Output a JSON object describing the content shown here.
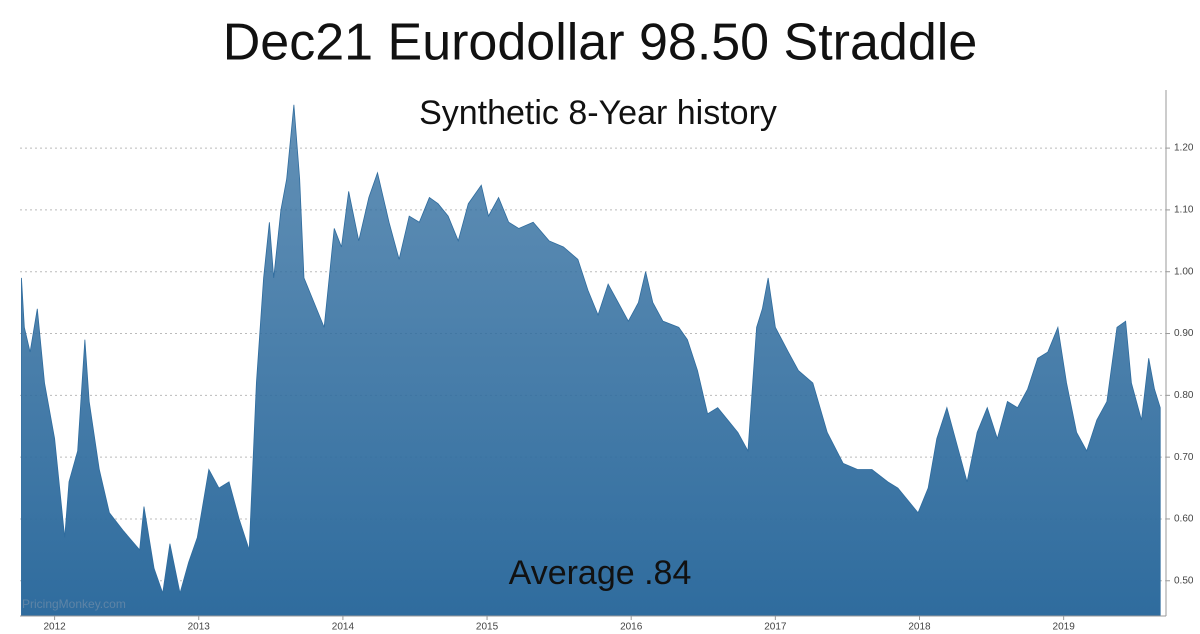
{
  "chart_data": {
    "type": "area",
    "title": "Dec21 Eurodollar 98.50 Straddle",
    "subtitle": "Synthetic 8-Year history",
    "annotation": "Average .84",
    "watermark": "PricingMonkey.com",
    "color": "#2f6c9e",
    "grid": true,
    "xlim": [
      2011.76,
      2019.71
    ],
    "ylim": [
      0.443,
      1.294
    ],
    "xticks": [
      2012,
      2013,
      2014,
      2015,
      2016,
      2017,
      2018,
      2019
    ],
    "yticks": [
      {
        "value": 0.5,
        "label": "0.50"
      },
      {
        "value": 0.6,
        "label": "0.60"
      },
      {
        "value": 0.7,
        "label": "0.70"
      },
      {
        "value": 0.8,
        "label": "0.80"
      },
      {
        "value": 0.9,
        "label": "0.90"
      },
      {
        "value": 1.0,
        "label": "1.00"
      },
      {
        "value": 1.1,
        "label": "1.10"
      },
      {
        "value": 1.2,
        "label": "1.20"
      }
    ],
    "x": [
      2011.77,
      2011.79,
      2011.83,
      2011.88,
      2011.93,
      2012.0,
      2012.07,
      2012.1,
      2012.16,
      2012.21,
      2012.24,
      2012.31,
      2012.38,
      2012.48,
      2012.59,
      2012.62,
      2012.69,
      2012.75,
      2012.8,
      2012.87,
      2012.93,
      2012.99,
      2013.07,
      2013.14,
      2013.21,
      2013.28,
      2013.35,
      2013.4,
      2013.45,
      2013.49,
      2013.52,
      2013.57,
      2013.61,
      2013.66,
      2013.7,
      2013.73,
      2013.8,
      2013.87,
      2013.94,
      2013.99,
      2014.04,
      2014.11,
      2014.18,
      2014.24,
      2014.32,
      2014.39,
      2014.46,
      2014.53,
      2014.6,
      2014.66,
      2014.73,
      2014.8,
      2014.87,
      2014.96,
      2015.01,
      2015.08,
      2015.15,
      2015.22,
      2015.32,
      2015.43,
      2015.53,
      2015.63,
      2015.7,
      2015.77,
      2015.84,
      2015.91,
      2015.98,
      2016.05,
      2016.1,
      2016.15,
      2016.22,
      2016.33,
      2016.39,
      2016.46,
      2016.53,
      2016.6,
      2016.67,
      2016.74,
      2016.81,
      2016.87,
      2016.91,
      2016.95,
      2017.0,
      2017.09,
      2017.16,
      2017.26,
      2017.36,
      2017.47,
      2017.57,
      2017.67,
      2017.78,
      2017.85,
      2017.92,
      2017.99,
      2018.06,
      2018.12,
      2018.19,
      2018.26,
      2018.33,
      2018.4,
      2018.47,
      2018.54,
      2018.61,
      2018.68,
      2018.75,
      2018.82,
      2018.89,
      2018.96,
      2019.02,
      2019.09,
      2019.16,
      2019.23,
      2019.3,
      2019.37,
      2019.43,
      2019.47,
      2019.54,
      2019.59,
      2019.63,
      2019.67
    ],
    "values": [
      0.99,
      0.91,
      0.87,
      0.94,
      0.82,
      0.73,
      0.57,
      0.66,
      0.71,
      0.89,
      0.79,
      0.68,
      0.61,
      0.58,
      0.55,
      0.62,
      0.52,
      0.48,
      0.56,
      0.48,
      0.53,
      0.57,
      0.68,
      0.65,
      0.66,
      0.6,
      0.55,
      0.82,
      0.99,
      1.08,
      0.99,
      1.1,
      1.15,
      1.27,
      1.15,
      0.99,
      0.95,
      0.91,
      1.07,
      1.04,
      1.13,
      1.05,
      1.12,
      1.16,
      1.08,
      1.02,
      1.09,
      1.08,
      1.12,
      1.11,
      1.09,
      1.05,
      1.11,
      1.14,
      1.09,
      1.12,
      1.08,
      1.07,
      1.08,
      1.05,
      1.04,
      1.02,
      0.97,
      0.93,
      0.98,
      0.95,
      0.92,
      0.95,
      1.0,
      0.95,
      0.92,
      0.91,
      0.89,
      0.84,
      0.77,
      0.78,
      0.76,
      0.74,
      0.71,
      0.91,
      0.94,
      0.99,
      0.91,
      0.87,
      0.84,
      0.82,
      0.74,
      0.69,
      0.68,
      0.68,
      0.66,
      0.65,
      0.63,
      0.61,
      0.65,
      0.73,
      0.78,
      0.72,
      0.66,
      0.74,
      0.78,
      0.73,
      0.79,
      0.78,
      0.81,
      0.86,
      0.87,
      0.91,
      0.82,
      0.74,
      0.71,
      0.76,
      0.79,
      0.91,
      0.92,
      0.82,
      0.76,
      0.86,
      0.81,
      0.78
    ]
  }
}
